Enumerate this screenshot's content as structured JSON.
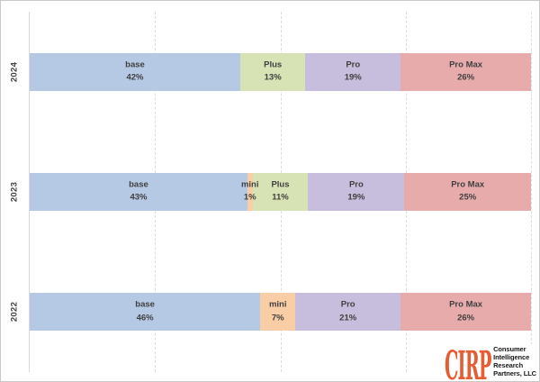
{
  "chart_data": {
    "type": "bar",
    "variant": "horizontal_stacked_percent",
    "title": "",
    "categories": [
      "2024",
      "2023",
      "2022"
    ],
    "x_axis": {
      "range_pct": [
        0,
        100
      ],
      "gridlines_pct": [
        25,
        50,
        75,
        100
      ],
      "gridline_style": "dashed-vertical"
    },
    "legend": "none (labels inline in segments)",
    "series_colors": {
      "base": "#b5c8e4",
      "mini": "#f9cda6",
      "Plus": "#d8e3b5",
      "Pro": "#c7bddc",
      "Pro Max": "#e7abac"
    },
    "rows": [
      {
        "year": "2024",
        "segments": [
          {
            "label": "base",
            "pct_label": "42%",
            "value": 42,
            "color": "#b5c8e4"
          },
          {
            "label": "Plus",
            "pct_label": "13%",
            "value": 13,
            "color": "#d8e3b5"
          },
          {
            "label": "Pro",
            "pct_label": "19%",
            "value": 19,
            "color": "#c7bddc"
          },
          {
            "label": "Pro Max",
            "pct_label": "26%",
            "value": 26,
            "color": "#e7abac"
          }
        ]
      },
      {
        "year": "2023",
        "segments": [
          {
            "label": "base",
            "pct_label": "43%",
            "value": 43,
            "color": "#b5c8e4"
          },
          {
            "label": "mini",
            "pct_label": "1%",
            "value": 1,
            "color": "#f9cda6"
          },
          {
            "label": "Plus",
            "pct_label": "11%",
            "value": 11,
            "color": "#d8e3b5"
          },
          {
            "label": "Pro",
            "pct_label": "19%",
            "value": 19,
            "color": "#c7bddc"
          },
          {
            "label": "Pro Max",
            "pct_label": "25%",
            "value": 25,
            "color": "#e7abac"
          }
        ]
      },
      {
        "year": "2022",
        "segments": [
          {
            "label": "base",
            "pct_label": "46%",
            "value": 46,
            "color": "#b5c8e4"
          },
          {
            "label": "mini",
            "pct_label": "7%",
            "value": 7,
            "color": "#f9cda6"
          },
          {
            "label": "Pro",
            "pct_label": "21%",
            "value": 21,
            "color": "#c7bddc"
          },
          {
            "label": "Pro Max",
            "pct_label": "26%",
            "value": 26,
            "color": "#e7abac"
          }
        ]
      }
    ]
  },
  "logo": {
    "brand": "CIRP",
    "color": "#e65c33",
    "lines": [
      "Consumer",
      "Intelligence",
      "Research",
      "Partners, LLC"
    ]
  },
  "style": {
    "label_color": "#3f3f3f",
    "grid_color": "#dcdcdc",
    "axis_color": "#d8d8d8",
    "frame_border": "#c9c9c9",
    "background": "#ffffff"
  }
}
